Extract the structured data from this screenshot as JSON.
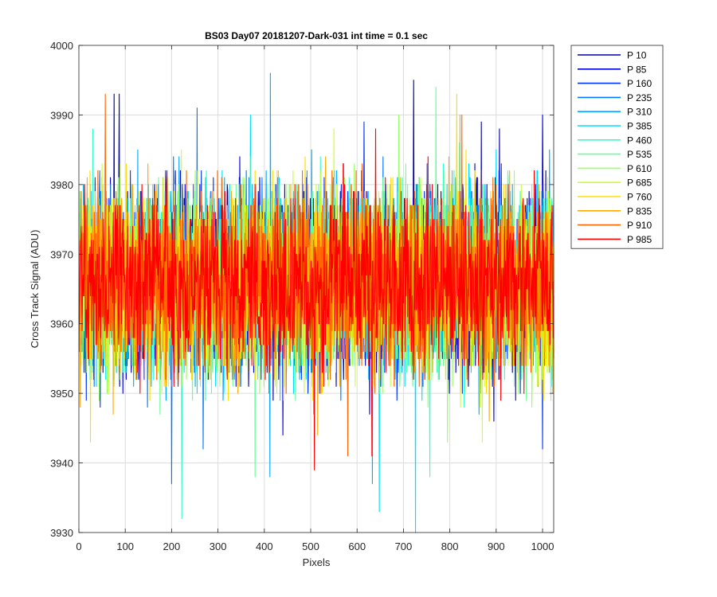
{
  "chart_data": {
    "type": "line",
    "title": "BS03 Day07 20181207-Dark-031 int time = 0.1 sec",
    "xlabel": "Pixels",
    "ylabel": "Cross Track Signal (ADU)",
    "xlim": [
      0,
      1024
    ],
    "ylim": [
      3930,
      4000
    ],
    "xticks": [
      0,
      100,
      200,
      300,
      400,
      500,
      600,
      700,
      800,
      900,
      1000
    ],
    "yticks": [
      3930,
      3940,
      3950,
      3960,
      3970,
      3980,
      3990,
      4000
    ],
    "grid": true,
    "legend_position": "outside-top-right",
    "noise_model": {
      "x_start": 1,
      "x_end": 1024,
      "mean": 3966,
      "std": 6.5
    },
    "series": [
      {
        "name": "P 10",
        "color": "#0000aa",
        "spikes": [
          [
            76,
            3993
          ],
          [
            722,
            3995
          ],
          [
            868,
            3989
          ],
          [
            907,
            3988
          ]
        ],
        "dips": [
          [
            895,
            3946
          ]
        ]
      },
      {
        "name": "P 85",
        "color": "#0000dd",
        "spikes": [
          [
            87,
            3993
          ],
          [
            1000,
            3990
          ]
        ],
        "dips": [
          [
            440,
            3944
          ]
        ]
      },
      {
        "name": "P 160",
        "color": "#0033ff",
        "spikes": [
          [
            615,
            3989
          ]
        ],
        "dips": [
          [
            1000,
            3942
          ]
        ]
      },
      {
        "name": "P 235",
        "color": "#0077ff",
        "spikes": [
          [
            255,
            3991
          ]
        ],
        "dips": [
          [
            200,
            3937
          ],
          [
            268,
            3942
          ]
        ]
      },
      {
        "name": "P 310",
        "color": "#00aaff",
        "spikes": [
          [
            413,
            3996
          ]
        ],
        "dips": [
          [
            633,
            3937
          ],
          [
            412,
            3938
          ]
        ]
      },
      {
        "name": "P 385",
        "color": "#00ddff",
        "spikes": [
          [
            370,
            3990
          ]
        ],
        "dips": [
          [
            726,
            3930
          ],
          [
            648,
            3933
          ]
        ]
      },
      {
        "name": "P 460",
        "color": "#33ffcc",
        "spikes": [
          [
            30,
            3988
          ]
        ],
        "dips": [
          [
            222,
            3932
          ],
          [
            757,
            3938
          ]
        ]
      },
      {
        "name": "P 535",
        "color": "#66ff99",
        "spikes": [
          [
            770,
            3994
          ]
        ],
        "dips": [
          [
            380,
            3938
          ]
        ]
      },
      {
        "name": "P 610",
        "color": "#99ff66",
        "spikes": [
          [
            690,
            3990
          ]
        ],
        "dips": [
          [
            795,
            3943
          ]
        ]
      },
      {
        "name": "P 685",
        "color": "#ccff33",
        "spikes": [
          [
            550,
            3988
          ]
        ],
        "dips": [
          [
            870,
            3943
          ]
        ]
      },
      {
        "name": "P 760",
        "color": "#ffdd00",
        "spikes": [
          [
            815,
            3993
          ]
        ],
        "dips": [
          [
            25,
            3943
          ]
        ]
      },
      {
        "name": "P 835",
        "color": "#ffaa00",
        "spikes": [
          [
            822,
            3990
          ]
        ],
        "dips": [
          [
            515,
            3944
          ]
        ]
      },
      {
        "name": "P 910",
        "color": "#ff6600",
        "spikes": [
          [
            57,
            3993
          ],
          [
            826,
            3990
          ]
        ],
        "dips": [
          [
            580,
            3941
          ]
        ]
      },
      {
        "name": "P 985",
        "color": "#ff0000",
        "spikes": [
          [
            640,
            3988
          ]
        ],
        "dips": [
          [
            508,
            3939
          ],
          [
            632,
            3941
          ]
        ]
      }
    ]
  }
}
